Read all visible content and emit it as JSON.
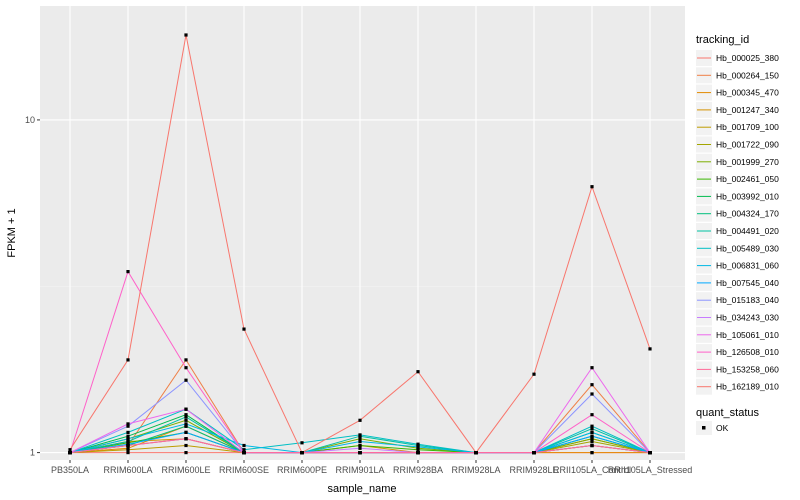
{
  "chart_data": {
    "type": "line",
    "xlabel": "sample_name",
    "ylabel": "FPKM + 1",
    "y_scale": "log",
    "ylim": [
      0.95,
      22
    ],
    "y_ticks": [
      1,
      10
    ],
    "y_tick_labels": [
      "1",
      "10"
    ],
    "grid": true,
    "legend_position": "right",
    "legend_title": "tracking_id",
    "point_legend_title": "quant_status",
    "point_legend_label": "OK",
    "categories": [
      "PB350LA",
      "RRIM600LA",
      "RRIM600LE",
      "RRIM600SE",
      "RRIM600PE",
      "RRIM901LA",
      "RRIM928BA",
      "RRIM928LA",
      "RRIM928LE",
      "RRII105LA_Control",
      "RRII105LA_Stressed"
    ],
    "series": [
      {
        "name": "Hb_000025_380",
        "color": "#F8766D",
        "values": [
          1.0,
          1.0,
          1.0,
          1.0,
          1.0,
          1.0,
          1.0,
          1.0,
          1.0,
          1.0,
          1.0
        ]
      },
      {
        "name": "Hb_000264_150",
        "color": "#EF7F46",
        "values": [
          1.0,
          1.05,
          1.9,
          1.0,
          1.0,
          1.0,
          1.0,
          1.0,
          1.0,
          1.6,
          1.0
        ]
      },
      {
        "name": "Hb_000345_470",
        "color": "#E38900",
        "values": [
          1.0,
          1.03,
          1.2,
          1.0,
          1.0,
          1.0,
          1.0,
          1.0,
          1.0,
          1.0,
          1.0
        ]
      },
      {
        "name": "Hb_001247_340",
        "color": "#D39200",
        "values": [
          1.0,
          1.08,
          1.1,
          1.0,
          1.0,
          1.05,
          1.0,
          1.0,
          1.0,
          1.1,
          1.0
        ]
      },
      {
        "name": "Hb_001709_100",
        "color": "#BE9C00",
        "values": [
          1.0,
          1.02,
          1.05,
          1.0,
          1.0,
          1.0,
          1.0,
          1.0,
          1.0,
          1.05,
          1.0
        ]
      },
      {
        "name": "Hb_001722_090",
        "color": "#A3A500",
        "values": [
          1.0,
          1.05,
          1.1,
          1.0,
          1.0,
          1.0,
          1.0,
          1.0,
          1.0,
          1.08,
          1.0
        ]
      },
      {
        "name": "Hb_001999_270",
        "color": "#7CAE00",
        "values": [
          1.0,
          1.1,
          1.25,
          1.0,
          1.0,
          1.1,
          1.03,
          1.0,
          1.0,
          1.1,
          1.0
        ]
      },
      {
        "name": "Hb_002461_050",
        "color": "#39B600",
        "values": [
          1.0,
          1.07,
          1.15,
          1.0,
          1.0,
          1.05,
          1.02,
          1.0,
          1.0,
          1.05,
          1.0
        ]
      },
      {
        "name": "Hb_003992_010",
        "color": "#00BB4E",
        "values": [
          1.0,
          1.12,
          1.3,
          1.0,
          1.0,
          1.0,
          1.0,
          1.0,
          1.0,
          1.12,
          1.0
        ]
      },
      {
        "name": "Hb_004324_170",
        "color": "#00BF7D",
        "values": [
          1.0,
          1.05,
          1.2,
          1.0,
          1.0,
          1.0,
          1.0,
          1.0,
          1.0,
          1.15,
          1.0
        ]
      },
      {
        "name": "Hb_004491_020",
        "color": "#00C1A3",
        "values": [
          1.0,
          1.08,
          1.28,
          1.0,
          1.0,
          1.12,
          1.05,
          1.0,
          1.0,
          1.18,
          1.0
        ]
      },
      {
        "name": "Hb_005489_030",
        "color": "#00BFC4",
        "values": [
          1.0,
          1.15,
          1.35,
          1.02,
          1.07,
          1.13,
          1.06,
          1.0,
          1.0,
          1.2,
          1.0
        ]
      },
      {
        "name": "Hb_006831_060",
        "color": "#00B8E5",
        "values": [
          1.0,
          1.1,
          1.22,
          1.05,
          1.0,
          1.08,
          1.04,
          1.0,
          1.0,
          1.15,
          1.0
        ]
      },
      {
        "name": "Hb_007545_040",
        "color": "#00A9FF",
        "values": [
          1.0,
          1.06,
          1.15,
          1.0,
          1.0,
          1.0,
          1.0,
          1.0,
          1.0,
          1.12,
          1.0
        ]
      },
      {
        "name": "Hb_015183_040",
        "color": "#8C94FF",
        "values": [
          1.0,
          1.2,
          1.65,
          1.0,
          1.0,
          1.0,
          1.0,
          1.0,
          1.0,
          1.5,
          1.0
        ]
      },
      {
        "name": "Hb_034243_030",
        "color": "#C77CFF",
        "values": [
          1.0,
          1.05,
          1.1,
          1.0,
          1.0,
          1.03,
          1.0,
          1.0,
          1.0,
          1.05,
          1.0
        ]
      },
      {
        "name": "Hb_105061_010",
        "color": "#ED68ED",
        "values": [
          1.0,
          1.22,
          1.35,
          1.0,
          1.0,
          1.0,
          1.0,
          1.0,
          1.0,
          1.8,
          1.0
        ]
      },
      {
        "name": "Hb_126508_010",
        "color": "#FF61C9",
        "values": [
          1.0,
          3.5,
          1.8,
          1.0,
          1.0,
          1.0,
          1.0,
          1.0,
          1.0,
          1.3,
          1.0
        ]
      },
      {
        "name": "Hb_153258_060",
        "color": "#FF6A98",
        "values": [
          1.0,
          1.05,
          1.1,
          1.0,
          1.0,
          1.0,
          1.0,
          1.0,
          1.0,
          1.05,
          1.0
        ]
      },
      {
        "name": "Hb_162189_010",
        "color": "#F8766D",
        "values": [
          1.02,
          1.9,
          18.0,
          2.35,
          1.0,
          1.25,
          1.75,
          1.0,
          1.72,
          6.3,
          2.05
        ]
      }
    ]
  }
}
